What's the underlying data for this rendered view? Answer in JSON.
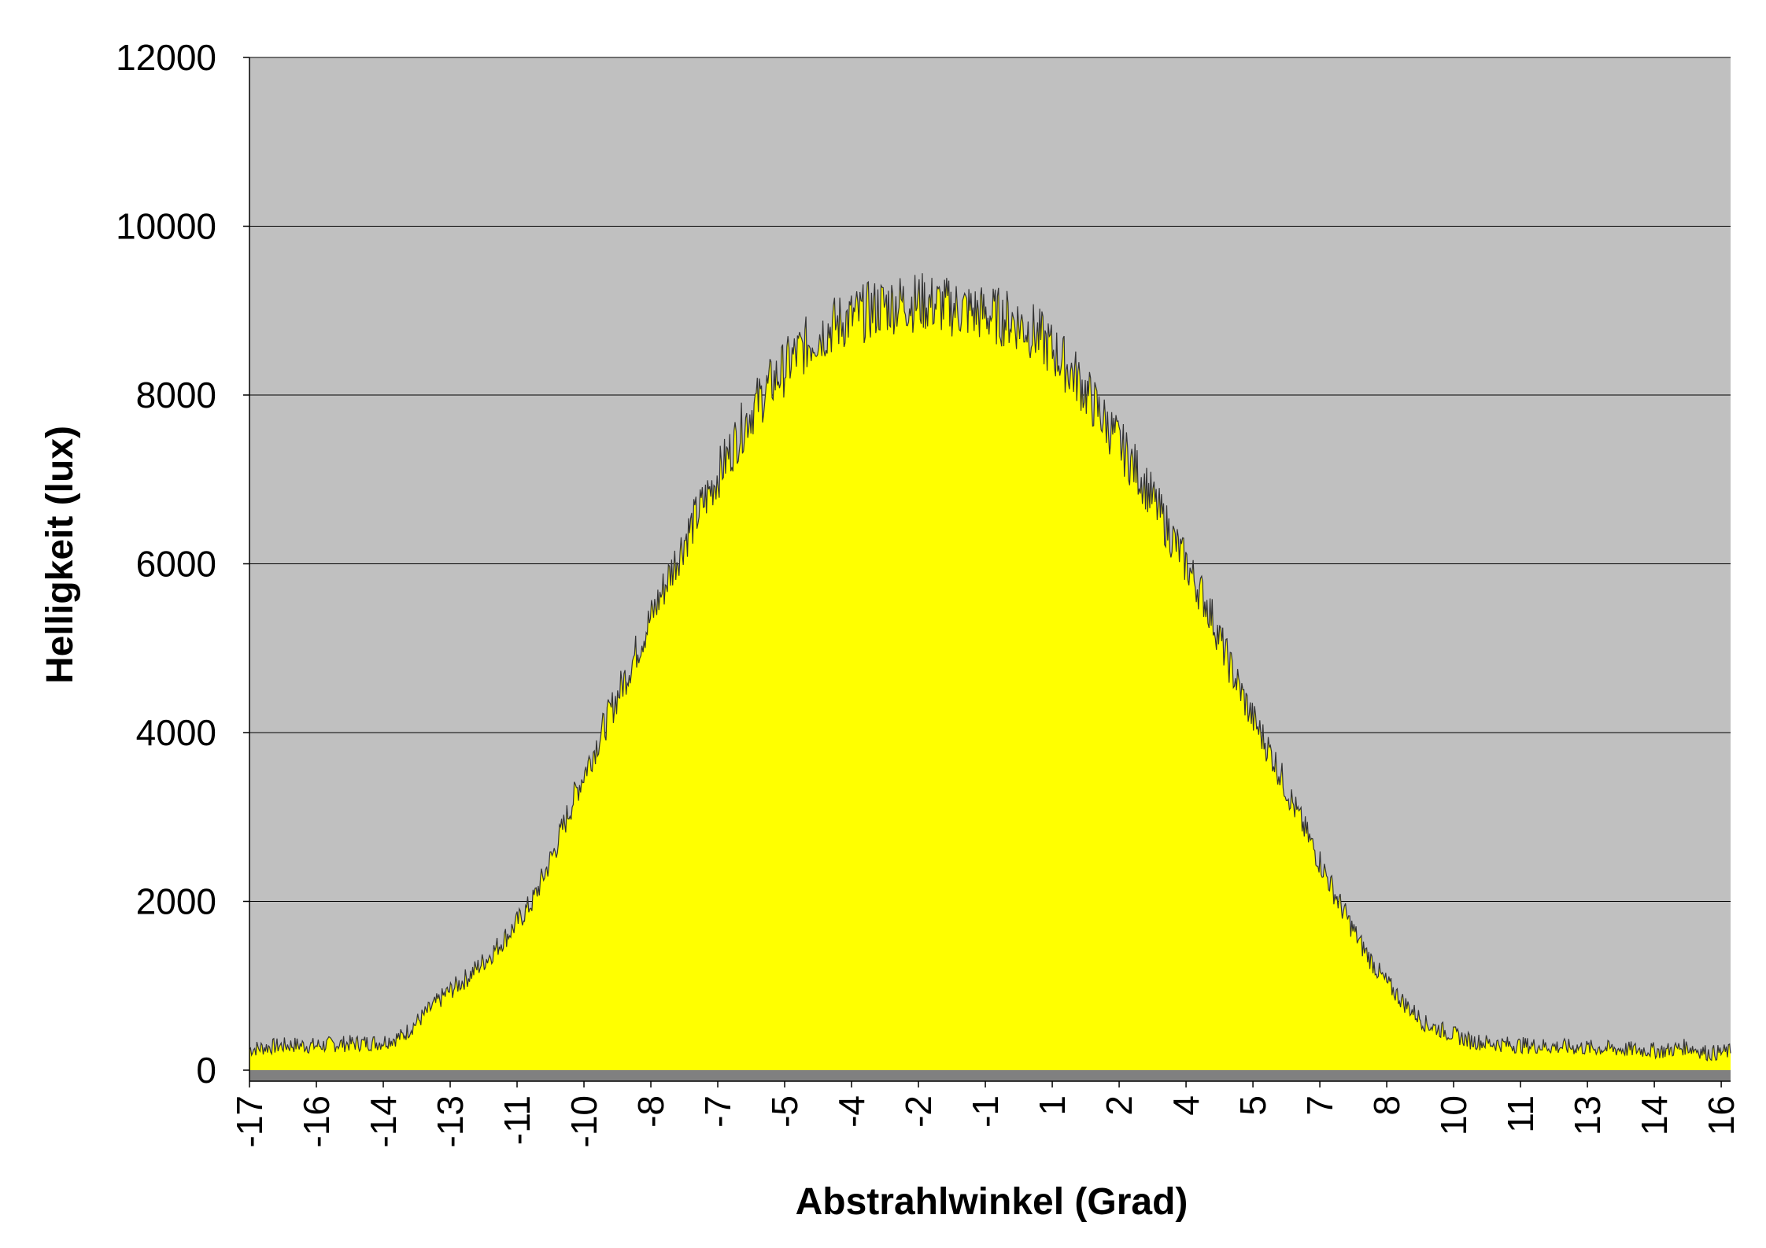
{
  "chart_data": {
    "type": "area",
    "title": "",
    "xlabel": "Abstrahlwinkel (Grad)",
    "ylabel": "Helligkeit (lux)",
    "ylim": [
      0,
      12000
    ],
    "xlim": [
      -17,
      17
    ],
    "yticks": [
      "0",
      "2000",
      "4000",
      "6000",
      "8000",
      "10000",
      "12000"
    ],
    "xticks": [
      "-17",
      "-16",
      "-14",
      "-13",
      "-11",
      "-10",
      "-8",
      "-7",
      "-5",
      "-4",
      "-2",
      "-1",
      "1",
      "2",
      "4",
      "5",
      "7",
      "8",
      "10",
      "11",
      "13",
      "14",
      "16"
    ],
    "grid": true,
    "legend": "none",
    "colors": {
      "fill": "#ffff00",
      "line": "#333333",
      "plot_background": "#c0c0c0",
      "floor": "#808080"
    },
    "series": [
      {
        "x": [
          -17,
          -16.5,
          -16,
          -15.5,
          -15,
          -14.5,
          -14,
          -13.5,
          -13,
          -12.5,
          -12,
          -11.5,
          -11,
          -10.5,
          -10,
          -9.5,
          -9,
          -8.5,
          -8,
          -7.5,
          -7,
          -6.5,
          -6,
          -5.5,
          -5,
          -4.5,
          -4,
          -3.5,
          -3,
          -2.5,
          -2,
          -1.5,
          -1,
          -0.5,
          0,
          0.5,
          1,
          1.5,
          2,
          2.5,
          3,
          3.5,
          4,
          4.5,
          5,
          5.5,
          6,
          6.5,
          7,
          7.5,
          8,
          8.5,
          9,
          9.5,
          10,
          10.5,
          11,
          11.5,
          12,
          12.5,
          13,
          13.5,
          14,
          14.5,
          15,
          15.5,
          16,
          16.5,
          17
        ],
        "values": [
          250,
          280,
          300,
          290,
          310,
          320,
          330,
          400,
          650,
          900,
          1100,
          1350,
          1650,
          2000,
          2600,
          3300,
          3900,
          4500,
          5100,
          5700,
          6300,
          6800,
          7300,
          7800,
          8150,
          8450,
          8700,
          8850,
          8950,
          9050,
          9100,
          9100,
          9050,
          9000,
          8950,
          8900,
          8750,
          8500,
          8200,
          7800,
          7400,
          7000,
          6500,
          6000,
          5500,
          4800,
          4200,
          3700,
          3100,
          2550,
          2000,
          1500,
          1100,
          800,
          550,
          450,
          350,
          320,
          300,
          290,
          280,
          270,
          260,
          250,
          240,
          230,
          280,
          200,
          220
        ]
      }
    ]
  }
}
